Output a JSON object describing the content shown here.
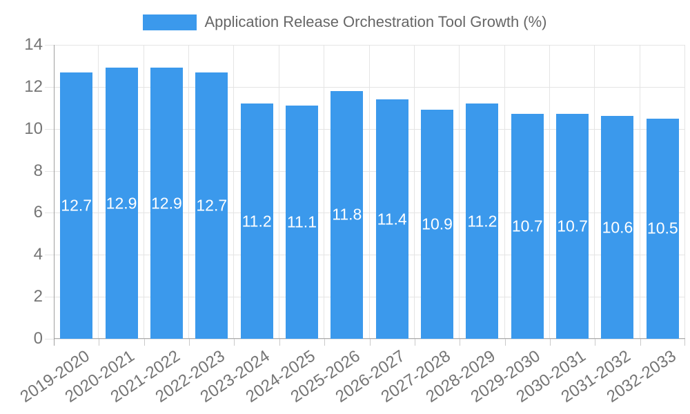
{
  "chart_data": {
    "type": "bar",
    "title": "Application Release Orchestration Tool Growth (%)",
    "categories": [
      "2019-2020",
      "2020-2021",
      "2021-2022",
      "2022-2023",
      "2023-2024",
      "2024-2025",
      "2025-2026",
      "2026-2027",
      "2027-2028",
      "2028-2029",
      "2029-2030",
      "2030-2031",
      "2031-2032",
      "2032-2033"
    ],
    "series": [
      {
        "name": "Application Release Orchestration Tool Growth (%)",
        "values": [
          12.7,
          12.9,
          12.9,
          12.7,
          11.2,
          11.1,
          11.8,
          11.4,
          10.9,
          11.2,
          10.7,
          10.7,
          10.6,
          10.5
        ]
      }
    ],
    "value_label_decimals": 1,
    "xlabel": "",
    "ylabel": "",
    "ylim": [
      0,
      14
    ],
    "yticks": [
      0,
      2,
      4,
      6,
      8,
      10,
      12,
      14
    ],
    "grid": true,
    "legend_position": "top",
    "colors": {
      "bar": "#3B99EC",
      "grid": "#E4E4E4",
      "y_axis": "#9E9E9E",
      "x_axis": "#ACACAC",
      "axis_tick": "#C9C9C9",
      "tick_text": "#757575",
      "legend_text": "#666666",
      "value_text": "#FFFFFF",
      "background": "#FFFFFF"
    }
  }
}
